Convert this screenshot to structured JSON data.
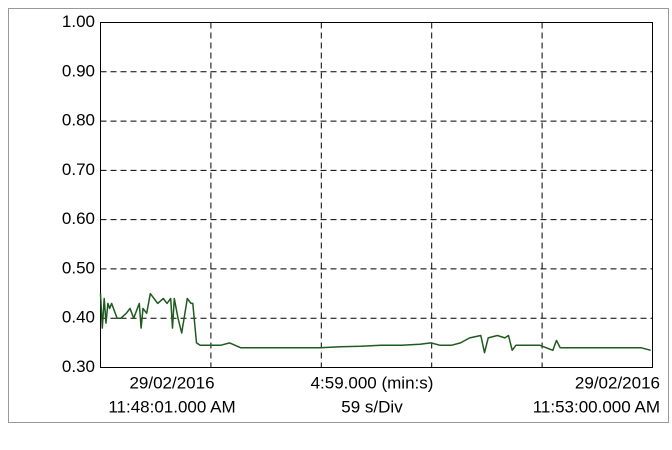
{
  "chart_data": {
    "type": "line",
    "x": [
      0,
      1,
      2,
      3,
      4,
      5,
      6,
      9,
      11,
      14,
      16,
      18,
      21,
      22,
      23,
      25,
      27,
      29,
      31,
      34,
      36,
      38,
      39,
      40,
      42,
      44,
      47,
      49,
      50,
      52,
      54,
      60,
      65,
      70,
      76,
      87,
      98,
      108,
      119,
      130,
      141,
      152,
      163,
      173,
      179,
      184,
      190,
      195,
      200,
      206,
      208,
      210,
      215,
      219,
      221,
      223,
      225,
      233,
      238,
      245,
      247,
      249,
      255,
      260,
      271,
      282,
      293,
      298
    ],
    "values": [
      0.45,
      0.38,
      0.44,
      0.39,
      0.43,
      0.42,
      0.43,
      0.4,
      0.4,
      0.41,
      0.42,
      0.4,
      0.43,
      0.38,
      0.42,
      0.41,
      0.45,
      0.44,
      0.43,
      0.44,
      0.43,
      0.44,
      0.38,
      0.44,
      0.4,
      0.37,
      0.44,
      0.43,
      0.43,
      0.35,
      0.345,
      0.345,
      0.345,
      0.35,
      0.34,
      0.34,
      0.34,
      0.34,
      0.34,
      0.342,
      0.343,
      0.345,
      0.345,
      0.347,
      0.35,
      0.345,
      0.345,
      0.35,
      0.36,
      0.365,
      0.33,
      0.36,
      0.365,
      0.36,
      0.365,
      0.335,
      0.345,
      0.345,
      0.345,
      0.335,
      0.355,
      0.34,
      0.34,
      0.34,
      0.34,
      0.34,
      0.34,
      0.335
    ],
    "color": "#1f5a1f",
    "xlim": [
      0,
      299
    ],
    "xticks": [
      0,
      59.8,
      119.6,
      179.4,
      239.2,
      299
    ],
    "ylim": [
      0.3,
      1.0
    ],
    "yticks": [
      {
        "value": 0.3,
        "label": "0.30"
      },
      {
        "value": 0.4,
        "label": "0.40"
      },
      {
        "value": 0.5,
        "label": "0.50"
      },
      {
        "value": 0.6,
        "label": "0.60"
      },
      {
        "value": 0.7,
        "label": "0.70"
      },
      {
        "value": 0.8,
        "label": "0.80"
      },
      {
        "value": 0.9,
        "label": "0.90"
      },
      {
        "value": 1.0,
        "label": "1.00"
      }
    ],
    "grid": true,
    "x_axis_labels": {
      "start": [
        "29/02/2016",
        "11:48:01.000 AM"
      ],
      "span": [
        "4:59.000 (min:s)",
        "59 s/Div"
      ],
      "end": [
        "29/02/2016",
        "11:53:00.000 AM"
      ]
    }
  }
}
